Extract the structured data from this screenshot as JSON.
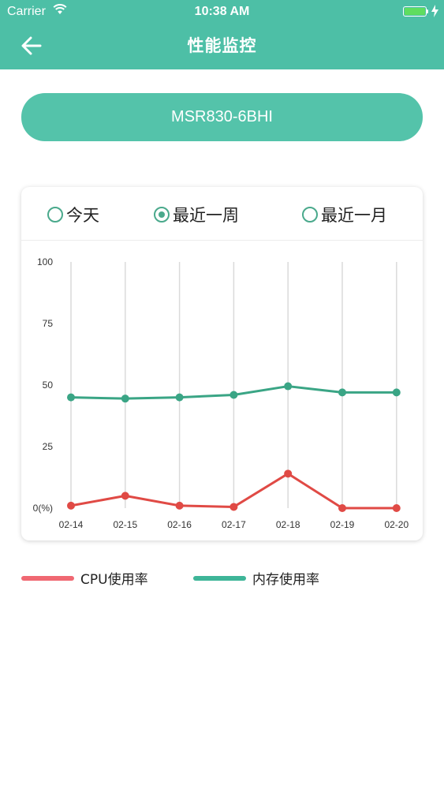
{
  "status_bar": {
    "carrier": "Carrier",
    "time": "10:38 AM"
  },
  "header": {
    "title": "性能监控",
    "back_icon": "arrow-left-icon"
  },
  "device": {
    "name": "MSR830-6BHI"
  },
  "range": {
    "options": [
      {
        "label": "今天",
        "selected": false
      },
      {
        "label": "最近一周",
        "selected": true
      },
      {
        "label": "最近一月",
        "selected": false
      }
    ]
  },
  "colors": {
    "accent": "#4dbfa6",
    "cpu": "#e04a45",
    "mem": "#3aa585",
    "cpu_legend": "#f06872",
    "mem_legend": "#3eb598"
  },
  "chart_data": {
    "type": "line",
    "categories": [
      "02-14",
      "02-15",
      "02-16",
      "02-17",
      "02-18",
      "02-19",
      "02-20"
    ],
    "y_ticks": [
      "100",
      "75",
      "50",
      "25",
      "0(%)"
    ],
    "ylim": [
      0,
      100
    ],
    "series": [
      {
        "name": "CPU使用率",
        "values": [
          1,
          5,
          1,
          0.5,
          14,
          0,
          0
        ]
      },
      {
        "name": "内存使用率",
        "values": [
          45,
          44.5,
          45,
          46,
          49.5,
          47,
          47
        ]
      }
    ]
  },
  "legend": {
    "cpu_label": "CPU使用率",
    "mem_label": "内存使用率"
  }
}
